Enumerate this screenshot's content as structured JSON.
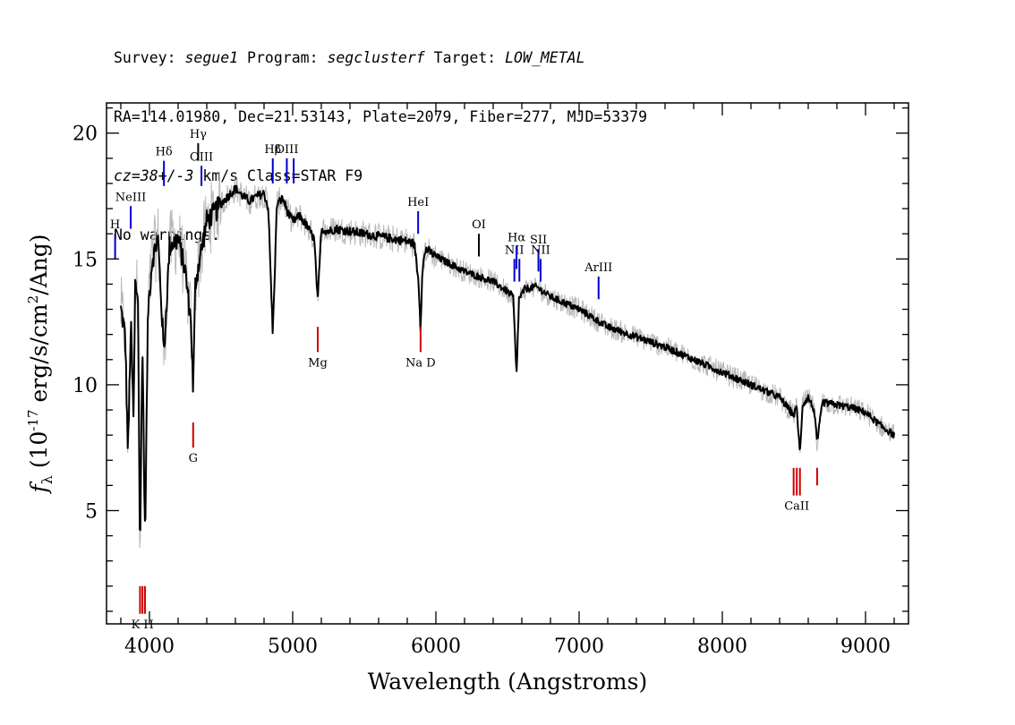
{
  "header": {
    "line1": [
      {
        "text": "Survey: ",
        "italic": false
      },
      {
        "text": "segue1",
        "italic": true
      },
      {
        "text": " Program: ",
        "italic": false
      },
      {
        "text": "segclusterf",
        "italic": true
      },
      {
        "text": " Target: ",
        "italic": false
      },
      {
        "text": "LOW_METAL",
        "italic": true
      }
    ],
    "line2": "RA=114.01980, Dec=21.53143, Plate=2079, Fiber=277, MJD=53379",
    "line3": [
      {
        "text": "cz=38+/-3",
        "italic": true
      },
      {
        "text": " km/s Class=STAR F9",
        "italic": false
      }
    ],
    "line4": "No warnings."
  },
  "chart_data": {
    "type": "line",
    "xlabel": "Wavelength (Angstroms)",
    "ylabel_main": "f",
    "ylabel_sub": "λ",
    "ylabel_rest_a": " (10",
    "ylabel_sup": "-17",
    "ylabel_rest_b": " erg/s/cm",
    "ylabel_sup2": "2",
    "ylabel_rest_c": "/Ang)",
    "xlim": [
      3700,
      9300
    ],
    "ylim": [
      0.5,
      21.2
    ],
    "xticks": [
      4000,
      5000,
      6000,
      7000,
      8000,
      9000
    ],
    "xtick_labels": [
      "4000",
      "5000",
      "6000",
      "7000",
      "8000",
      "9000"
    ],
    "yticks": [
      5,
      10,
      15,
      20
    ],
    "ytick_labels": [
      "5",
      "10",
      "15",
      "20"
    ],
    "grid": false,
    "series": [
      {
        "role": "smoothed flux",
        "color": "#000000",
        "x": [
          3800,
          3830,
          3850,
          3870,
          3889,
          3900,
          3920,
          3934,
          3950,
          3969,
          3990,
          4020,
          4060,
          4101,
          4140,
          4200,
          4250,
          4290,
          4305,
          4320,
          4350,
          4400,
          4450,
          4500,
          4550,
          4600,
          4650,
          4700,
          4750,
          4800,
          4830,
          4861,
          4890,
          4930,
          4970,
          5000,
          5050,
          5100,
          5150,
          5175,
          5200,
          5250,
          5300,
          5400,
          5500,
          5600,
          5700,
          5800,
          5850,
          5880,
          5893,
          5905,
          5930,
          6000,
          6100,
          6200,
          6300,
          6400,
          6500,
          6540,
          6563,
          6580,
          6620,
          6700,
          6800,
          7000,
          7200,
          7400,
          7600,
          7800,
          8000,
          8200,
          8400,
          8498,
          8520,
          8542,
          8560,
          8600,
          8640,
          8662,
          8700,
          8800,
          8900,
          9000,
          9100,
          9200
        ],
        "y": [
          13.0,
          12.0,
          7.2,
          12.5,
          8.5,
          14.0,
          13.5,
          2.8,
          12.0,
          3.8,
          13.0,
          15.0,
          15.8,
          11.2,
          15.5,
          15.8,
          14.5,
          12.5,
          9.7,
          14.0,
          15.0,
          16.5,
          16.8,
          17.2,
          17.5,
          17.8,
          17.5,
          17.3,
          17.5,
          17.6,
          17.0,
          12.0,
          17.2,
          17.4,
          16.8,
          16.5,
          16.7,
          16.3,
          15.8,
          13.3,
          16.2,
          16.1,
          16.2,
          16.1,
          16.0,
          15.9,
          15.8,
          15.7,
          15.6,
          14.0,
          12.2,
          14.6,
          15.4,
          15.1,
          14.8,
          14.5,
          14.3,
          14.1,
          13.7,
          13.5,
          10.3,
          13.4,
          13.8,
          13.9,
          13.5,
          13.0,
          12.3,
          11.9,
          11.5,
          11.0,
          10.5,
          10.0,
          9.5,
          8.8,
          9.1,
          7.2,
          9.2,
          9.5,
          9.0,
          7.7,
          9.3,
          9.2,
          9.1,
          8.9,
          8.4,
          8.0
        ]
      }
    ],
    "line_markers": [
      {
        "label": "H",
        "x": 3760,
        "y_top": 16.0,
        "y_bot": 15.0,
        "color": "#0000cc"
      },
      {
        "label": "NeIII",
        "x": 3869,
        "y_top": 17.1,
        "y_bot": 16.2,
        "color": "#0000cc"
      },
      {
        "label": "Hδ",
        "x": 4101,
        "y_top": 18.9,
        "y_bot": 17.9,
        "color": "#0000cc"
      },
      {
        "label": "Hγ",
        "x": 4340,
        "y_top": 19.6,
        "y_bot": 18.9,
        "color": "#000000"
      },
      {
        "label": "OIII",
        "x": 4363,
        "y_top": 18.7,
        "y_bot": 17.9,
        "color": "#0000cc"
      },
      {
        "label": "Hβ",
        "x": 4861,
        "y_top": 19.0,
        "y_bot": 18.0,
        "color": "#0000cc"
      },
      {
        "label": "OIII",
        "x": 4959,
        "y_top": 19.0,
        "y_bot": 18.0,
        "color": "#0000cc"
      },
      {
        "label": "",
        "x": 5007,
        "y_top": 19.0,
        "y_bot": 18.0,
        "color": "#0000cc"
      },
      {
        "label": "HeI",
        "x": 5876,
        "y_top": 16.9,
        "y_bot": 16.0,
        "color": "#0000cc"
      },
      {
        "label": "OI",
        "x": 6300,
        "y_top": 16.0,
        "y_bot": 15.1,
        "color": "#000000"
      },
      {
        "label": "NII",
        "x": 6548,
        "y_top": 15.0,
        "y_bot": 14.1,
        "color": "#0000cc"
      },
      {
        "label": "Hα",
        "x": 6563,
        "y_top": 15.5,
        "y_bot": 14.6,
        "color": "#0000cc"
      },
      {
        "label": "",
        "x": 6583,
        "y_top": 15.0,
        "y_bot": 14.1,
        "color": "#0000cc"
      },
      {
        "label": "SII",
        "x": 6716,
        "y_top": 15.4,
        "y_bot": 14.5,
        "color": "#0000cc"
      },
      {
        "label": "NII",
        "x": 6731,
        "y_top": 15.0,
        "y_bot": 14.1,
        "color": "#0000cc"
      },
      {
        "label": "ArIII",
        "x": 7136,
        "y_top": 14.3,
        "y_bot": 13.4,
        "color": "#0000cc"
      },
      {
        "label": "K H",
        "x": 3951,
        "y_top": 2.0,
        "y_bot": 0.9,
        "color": "#cc0000",
        "below": true
      },
      {
        "label": "",
        "x": 3934,
        "y_top": 2.0,
        "y_bot": 0.9,
        "color": "#cc0000"
      },
      {
        "label": "",
        "x": 3969,
        "y_top": 2.0,
        "y_bot": 0.9,
        "color": "#cc0000"
      },
      {
        "label": "G",
        "x": 4305,
        "y_top": 8.5,
        "y_bot": 7.5,
        "color": "#cc0000",
        "below": true
      },
      {
        "label": "Mg",
        "x": 5175,
        "y_top": 12.3,
        "y_bot": 11.3,
        "color": "#cc0000",
        "below": true
      },
      {
        "label": "Na  D",
        "x": 5893,
        "y_top": 12.3,
        "y_bot": 11.3,
        "color": "#cc0000",
        "below": true
      },
      {
        "label": "CaII",
        "x": 8520,
        "y_top": 6.7,
        "y_bot": 5.6,
        "color": "#cc0000",
        "below": true
      },
      {
        "label": "",
        "x": 8498,
        "y_top": 6.7,
        "y_bot": 5.6,
        "color": "#cc0000"
      },
      {
        "label": "",
        "x": 8542,
        "y_top": 6.7,
        "y_bot": 5.6,
        "color": "#cc0000"
      },
      {
        "label": "",
        "x": 8662,
        "y_top": 6.7,
        "y_bot": 6.0,
        "color": "#cc0000"
      }
    ]
  }
}
